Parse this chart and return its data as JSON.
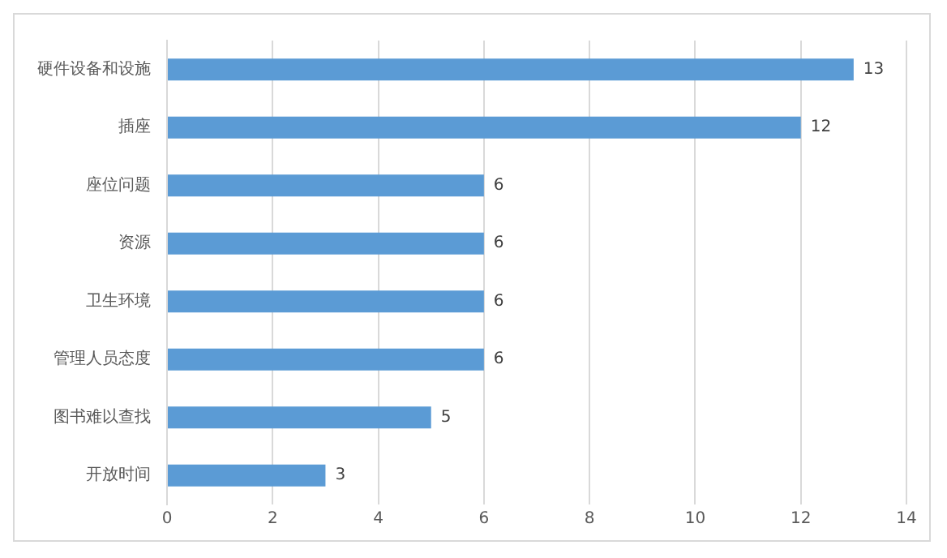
{
  "chart_data": {
    "type": "bar",
    "orientation": "horizontal",
    "categories": [
      "硬件设备和设施",
      "插座",
      "座位问题",
      "资源",
      "卫生环境",
      "管理人员态度",
      "图书难以查找",
      "开放时间"
    ],
    "values": [
      13,
      12,
      6,
      6,
      6,
      6,
      5,
      3
    ],
    "color": "#5b9bd5",
    "xlim": [
      0,
      14
    ],
    "xticks": [
      0,
      2,
      4,
      6,
      8,
      10,
      12,
      14
    ],
    "grid": "x",
    "data_labels": true,
    "legend": false
  }
}
